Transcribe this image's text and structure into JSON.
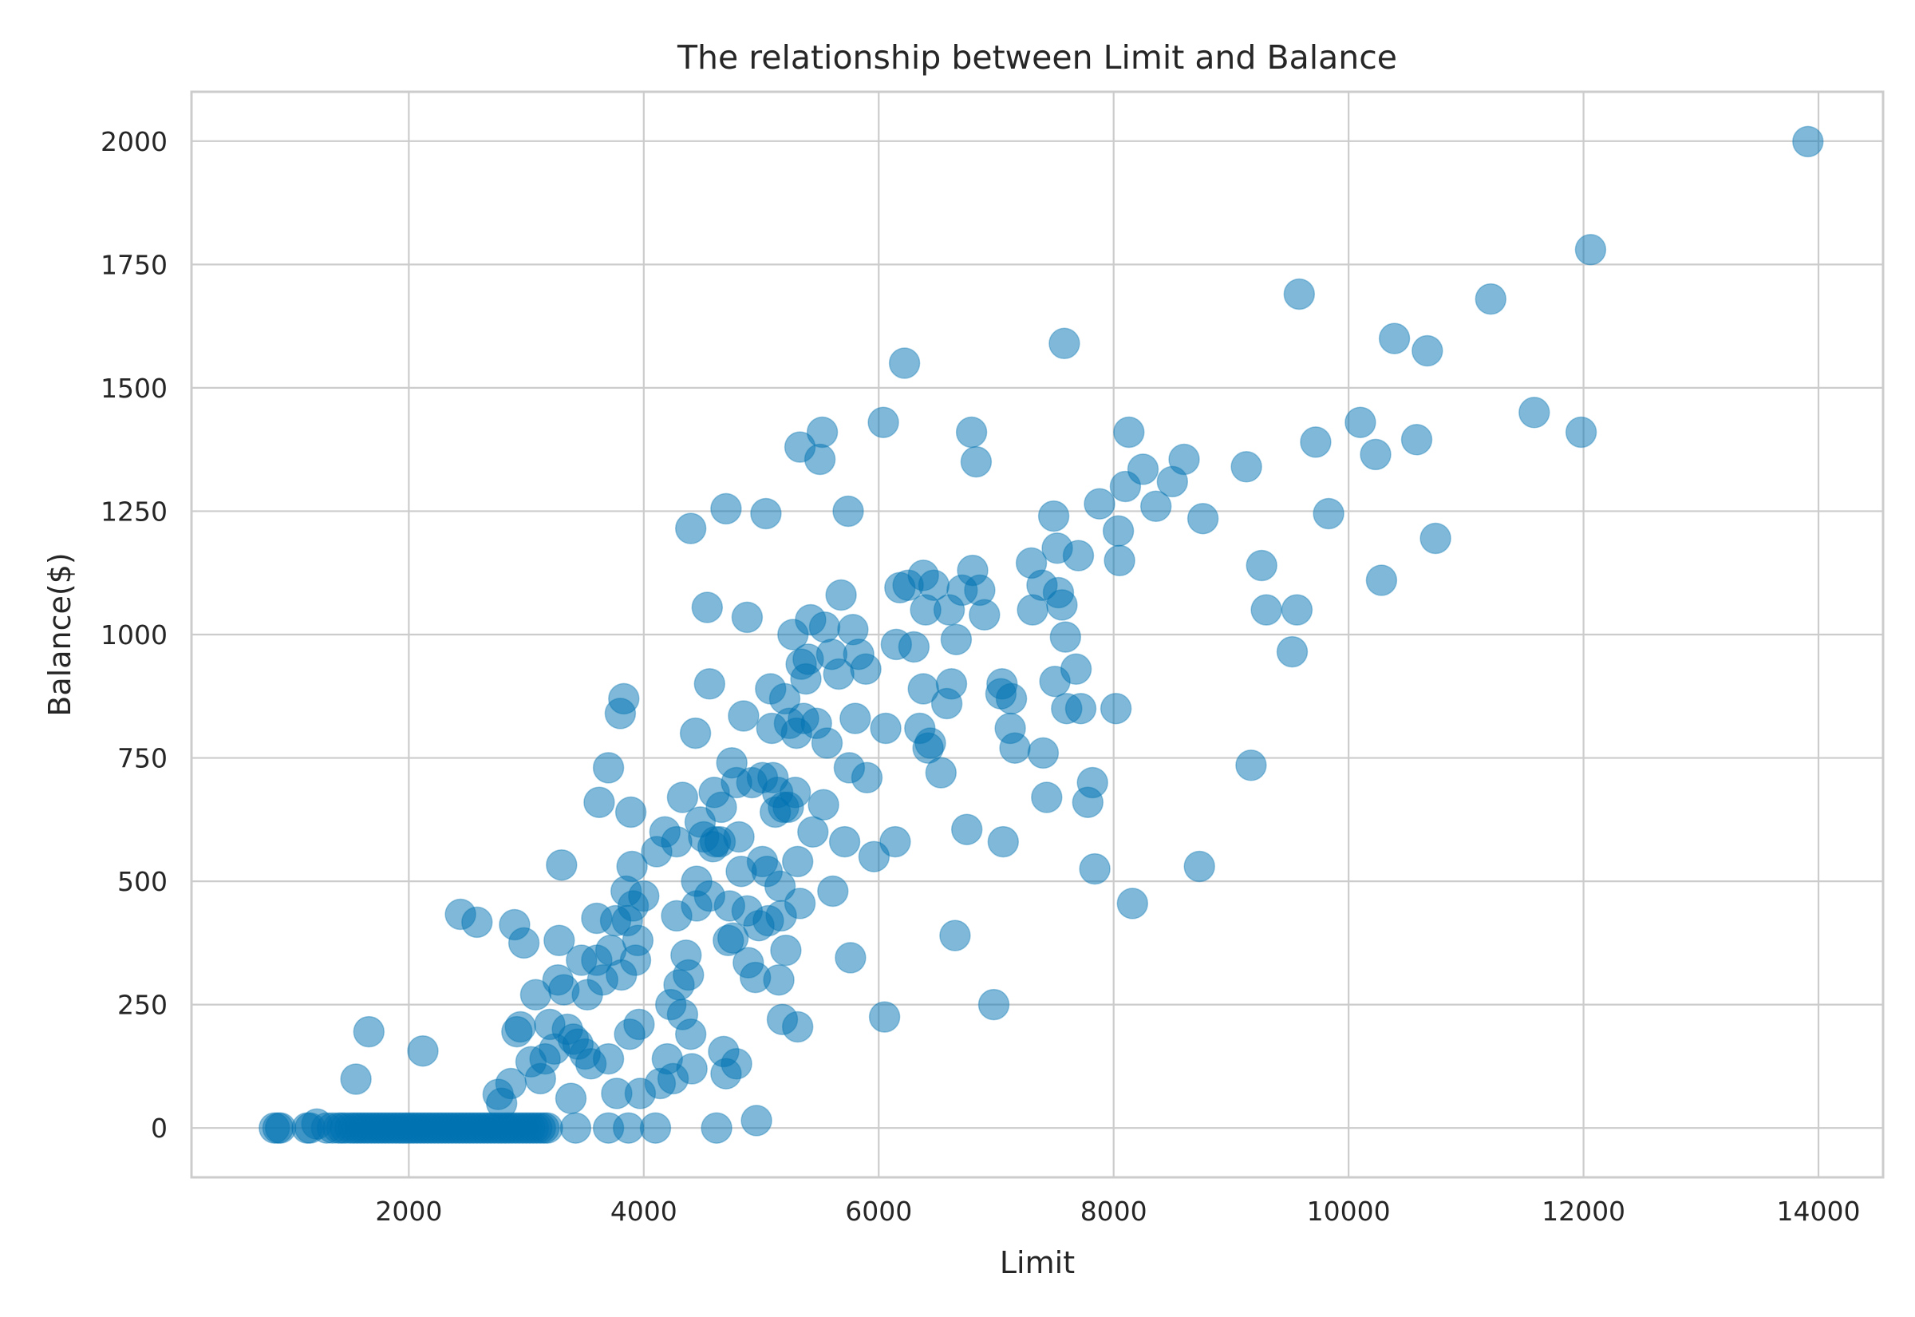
{
  "chart_data": {
    "type": "scatter",
    "title": "The relationship between Limit and Balance",
    "xlabel": "Limit",
    "ylabel": "Balance($)",
    "xlim": [
      150,
      14550
    ],
    "ylim": [
      -100,
      2100
    ],
    "xticks": [
      2000,
      4000,
      6000,
      8000,
      10000,
      12000,
      14000
    ],
    "yticks": [
      0,
      250,
      500,
      750,
      1000,
      1250,
      1500,
      1750,
      2000
    ],
    "grid": true,
    "legend": "none",
    "marker_color": "#0072b2",
    "marker_opacity": 0.5,
    "series": [
      {
        "points": [
          [
            855,
            0
          ],
          [
            886,
            0
          ],
          [
            908,
            0
          ],
          [
            1134,
            0
          ],
          [
            1160,
            0
          ],
          [
            1217,
            8
          ],
          [
            1300,
            0
          ],
          [
            1350,
            0
          ],
          [
            1400,
            0
          ],
          [
            1430,
            0
          ],
          [
            1460,
            0
          ],
          [
            1500,
            0
          ],
          [
            1530,
            0
          ],
          [
            1560,
            0
          ],
          [
            1590,
            0
          ],
          [
            1620,
            0
          ],
          [
            1650,
            0
          ],
          [
            1680,
            0
          ],
          [
            1710,
            0
          ],
          [
            1740,
            0
          ],
          [
            1770,
            0
          ],
          [
            1800,
            0
          ],
          [
            1830,
            0
          ],
          [
            1860,
            0
          ],
          [
            1890,
            0
          ],
          [
            1920,
            0
          ],
          [
            1950,
            0
          ],
          [
            1980,
            0
          ],
          [
            2010,
            0
          ],
          [
            2040,
            0
          ],
          [
            2070,
            0
          ],
          [
            2100,
            0
          ],
          [
            2130,
            0
          ],
          [
            2160,
            0
          ],
          [
            2190,
            0
          ],
          [
            2220,
            0
          ],
          [
            2250,
            0
          ],
          [
            2280,
            0
          ],
          [
            2310,
            0
          ],
          [
            2340,
            0
          ],
          [
            2370,
            0
          ],
          [
            2400,
            0
          ],
          [
            2430,
            0
          ],
          [
            2460,
            0
          ],
          [
            2490,
            0
          ],
          [
            2520,
            0
          ],
          [
            2550,
            0
          ],
          [
            2580,
            0
          ],
          [
            2610,
            0
          ],
          [
            2640,
            0
          ],
          [
            2670,
            0
          ],
          [
            2700,
            0
          ],
          [
            2730,
            0
          ],
          [
            2760,
            0
          ],
          [
            2790,
            0
          ],
          [
            2820,
            0
          ],
          [
            2850,
            0
          ],
          [
            2880,
            0
          ],
          [
            2910,
            0
          ],
          [
            2940,
            0
          ],
          [
            2970,
            0
          ],
          [
            3000,
            0
          ],
          [
            3030,
            0
          ],
          [
            3060,
            0
          ],
          [
            3090,
            0
          ],
          [
            3120,
            0
          ],
          [
            3150,
            0
          ],
          [
            3180,
            0
          ],
          [
            3420,
            0
          ],
          [
            3700,
            0
          ],
          [
            3870,
            0
          ],
          [
            4100,
            0
          ],
          [
            4620,
            0
          ],
          [
            1550,
            99
          ],
          [
            1660,
            195
          ],
          [
            2120,
            156
          ],
          [
            2440,
            433
          ],
          [
            2580,
            417
          ],
          [
            2760,
            68
          ],
          [
            2790,
            50
          ],
          [
            2870,
            90
          ],
          [
            2900,
            412
          ],
          [
            2920,
            195
          ],
          [
            2950,
            205
          ],
          [
            2980,
            375
          ],
          [
            3040,
            134
          ],
          [
            3080,
            270
          ],
          [
            3120,
            100
          ],
          [
            3160,
            140
          ],
          [
            3200,
            210
          ],
          [
            3240,
            160
          ],
          [
            3270,
            300
          ],
          [
            3300,
            533
          ],
          [
            3280,
            380
          ],
          [
            3320,
            280
          ],
          [
            3350,
            200
          ],
          [
            3380,
            60
          ],
          [
            3400,
            180
          ],
          [
            3440,
            170
          ],
          [
            3470,
            340
          ],
          [
            3500,
            150
          ],
          [
            3520,
            270
          ],
          [
            3550,
            130
          ],
          [
            3600,
            425
          ],
          [
            3600,
            340
          ],
          [
            3620,
            660
          ],
          [
            3650,
            300
          ],
          [
            3700,
            730
          ],
          [
            3700,
            140
          ],
          [
            3720,
            360
          ],
          [
            3760,
            420
          ],
          [
            3770,
            70
          ],
          [
            3800,
            840
          ],
          [
            3810,
            310
          ],
          [
            3830,
            870
          ],
          [
            3850,
            480
          ],
          [
            3860,
            420
          ],
          [
            3880,
            190
          ],
          [
            3890,
            640
          ],
          [
            3900,
            530
          ],
          [
            3910,
            450
          ],
          [
            3930,
            340
          ],
          [
            3950,
            380
          ],
          [
            3960,
            210
          ],
          [
            3970,
            70
          ],
          [
            4000,
            470
          ],
          [
            4110,
            560
          ],
          [
            4140,
            90
          ],
          [
            4180,
            600
          ],
          [
            4200,
            140
          ],
          [
            4230,
            250
          ],
          [
            4250,
            100
          ],
          [
            4280,
            580
          ],
          [
            4280,
            430
          ],
          [
            4300,
            290
          ],
          [
            4330,
            230
          ],
          [
            4330,
            670
          ],
          [
            4360,
            350
          ],
          [
            4380,
            310
          ],
          [
            4400,
            1215
          ],
          [
            4400,
            190
          ],
          [
            4410,
            120
          ],
          [
            4440,
            800
          ],
          [
            4450,
            500
          ],
          [
            4450,
            450
          ],
          [
            4480,
            620
          ],
          [
            4510,
            590
          ],
          [
            4540,
            1055
          ],
          [
            4560,
            900
          ],
          [
            4560,
            470
          ],
          [
            4590,
            570
          ],
          [
            4600,
            680
          ],
          [
            4610,
            580
          ],
          [
            4650,
            580
          ],
          [
            4660,
            650
          ],
          [
            4680,
            155
          ],
          [
            4700,
            1255
          ],
          [
            4700,
            110
          ],
          [
            4720,
            380
          ],
          [
            4730,
            450
          ],
          [
            4750,
            740
          ],
          [
            4760,
            385
          ],
          [
            4790,
            700
          ],
          [
            4790,
            130
          ],
          [
            4810,
            590
          ],
          [
            4830,
            520
          ],
          [
            4850,
            835
          ],
          [
            4880,
            1035
          ],
          [
            4880,
            440
          ],
          [
            4890,
            335
          ],
          [
            4920,
            700
          ],
          [
            4950,
            305
          ],
          [
            4960,
            15
          ],
          [
            4980,
            410
          ],
          [
            5010,
            540
          ],
          [
            5010,
            710
          ],
          [
            5040,
            1245
          ],
          [
            5050,
            520
          ],
          [
            5060,
            420
          ],
          [
            5080,
            890
          ],
          [
            5090,
            810
          ],
          [
            5100,
            710
          ],
          [
            5120,
            640
          ],
          [
            5140,
            680
          ],
          [
            5150,
            300
          ],
          [
            5160,
            490
          ],
          [
            5170,
            430
          ],
          [
            5180,
            220
          ],
          [
            5190,
            650
          ],
          [
            5200,
            870
          ],
          [
            5210,
            360
          ],
          [
            5230,
            650
          ],
          [
            5240,
            820
          ],
          [
            5270,
            1000
          ],
          [
            5290,
            680
          ],
          [
            5300,
            800
          ],
          [
            5310,
            540
          ],
          [
            5310,
            205
          ],
          [
            5330,
            455
          ],
          [
            5330,
            1380
          ],
          [
            5340,
            940
          ],
          [
            5360,
            830
          ],
          [
            5380,
            910
          ],
          [
            5400,
            950
          ],
          [
            5420,
            1030
          ],
          [
            5440,
            600
          ],
          [
            5470,
            820
          ],
          [
            5500,
            1355
          ],
          [
            5520,
            1410
          ],
          [
            5530,
            655
          ],
          [
            5540,
            1015
          ],
          [
            5560,
            780
          ],
          [
            5600,
            960
          ],
          [
            5610,
            480
          ],
          [
            5660,
            920
          ],
          [
            5680,
            1080
          ],
          [
            5710,
            580
          ],
          [
            5740,
            1250
          ],
          [
            5750,
            730
          ],
          [
            5760,
            345
          ],
          [
            5780,
            1010
          ],
          [
            5800,
            830
          ],
          [
            5830,
            960
          ],
          [
            5890,
            930
          ],
          [
            5900,
            710
          ],
          [
            5960,
            550
          ],
          [
            6040,
            1430
          ],
          [
            6050,
            225
          ],
          [
            6060,
            810
          ],
          [
            6140,
            580
          ],
          [
            6150,
            980
          ],
          [
            6180,
            1095
          ],
          [
            6220,
            1550
          ],
          [
            6250,
            1100
          ],
          [
            6300,
            975
          ],
          [
            6350,
            810
          ],
          [
            6380,
            890
          ],
          [
            6380,
            1120
          ],
          [
            6400,
            1050
          ],
          [
            6420,
            770
          ],
          [
            6440,
            780
          ],
          [
            6470,
            1100
          ],
          [
            6530,
            720
          ],
          [
            6580,
            860
          ],
          [
            6600,
            1050
          ],
          [
            6620,
            900
          ],
          [
            6650,
            390
          ],
          [
            6660,
            990
          ],
          [
            6710,
            1090
          ],
          [
            6750,
            605
          ],
          [
            6790,
            1410
          ],
          [
            6800,
            1130
          ],
          [
            6830,
            1350
          ],
          [
            6860,
            1090
          ],
          [
            6900,
            1040
          ],
          [
            6980,
            250
          ],
          [
            7040,
            880
          ],
          [
            7050,
            900
          ],
          [
            7060,
            580
          ],
          [
            7120,
            810
          ],
          [
            7130,
            870
          ],
          [
            7160,
            770
          ],
          [
            7300,
            1145
          ],
          [
            7310,
            1050
          ],
          [
            7390,
            1100
          ],
          [
            7400,
            760
          ],
          [
            7430,
            670
          ],
          [
            7490,
            1240
          ],
          [
            7500,
            905
          ],
          [
            7520,
            1175
          ],
          [
            7530,
            1085
          ],
          [
            7560,
            1060
          ],
          [
            7580,
            1590
          ],
          [
            7590,
            995
          ],
          [
            7600,
            850
          ],
          [
            7680,
            930
          ],
          [
            7700,
            1160
          ],
          [
            7720,
            850
          ],
          [
            7780,
            660
          ],
          [
            7820,
            700
          ],
          [
            7840,
            525
          ],
          [
            7880,
            1265
          ],
          [
            8020,
            850
          ],
          [
            8040,
            1210
          ],
          [
            8050,
            1150
          ],
          [
            8100,
            1300
          ],
          [
            8130,
            1410
          ],
          [
            8160,
            455
          ],
          [
            8250,
            1335
          ],
          [
            8360,
            1260
          ],
          [
            8500,
            1310
          ],
          [
            8600,
            1355
          ],
          [
            8730,
            530
          ],
          [
            8760,
            1235
          ],
          [
            9130,
            1340
          ],
          [
            9170,
            735
          ],
          [
            9260,
            1140
          ],
          [
            9300,
            1050
          ],
          [
            9520,
            965
          ],
          [
            9560,
            1050
          ],
          [
            9580,
            1690
          ],
          [
            9720,
            1390
          ],
          [
            9830,
            1245
          ],
          [
            10100,
            1430
          ],
          [
            10230,
            1365
          ],
          [
            10280,
            1110
          ],
          [
            10390,
            1600
          ],
          [
            10580,
            1395
          ],
          [
            10670,
            1575
          ],
          [
            10740,
            1195
          ],
          [
            11210,
            1680
          ],
          [
            11580,
            1450
          ],
          [
            11980,
            1410
          ],
          [
            12060,
            1780
          ],
          [
            13910,
            1999
          ]
        ]
      }
    ]
  }
}
